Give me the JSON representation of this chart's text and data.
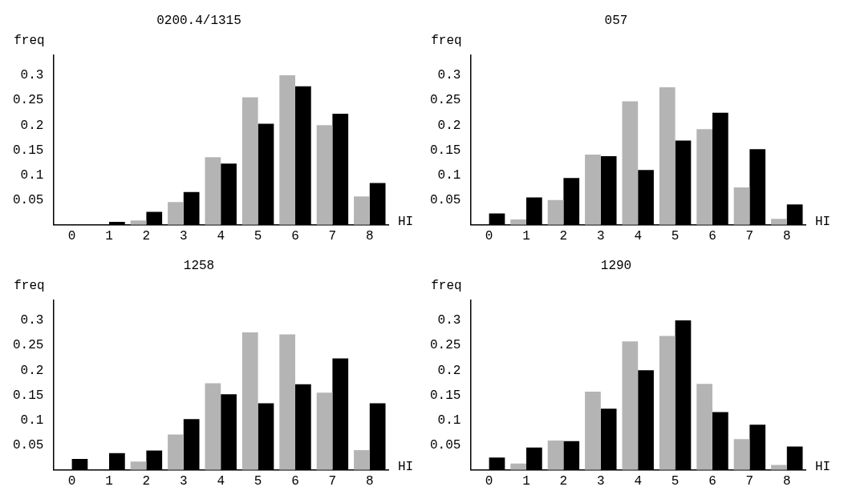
{
  "chart_data": [
    {
      "type": "bar",
      "title": "0200.4/1315",
      "xlabel": "HI",
      "ylabel": "freq",
      "categories": [
        "0",
        "1",
        "2",
        "3",
        "4",
        "5",
        "6",
        "7",
        "8"
      ],
      "ylim": [
        0,
        0.34
      ],
      "yticks": [
        0.05,
        0.1,
        0.15,
        0.2,
        0.25,
        0.3
      ],
      "grid": false,
      "legend": false,
      "series": [
        {
          "color": "#b4b4b4",
          "values": [
            0,
            0,
            0.009,
            0.046,
            0.136,
            0.256,
            0.3,
            0.2,
            0.057
          ]
        },
        {
          "color": "#000000",
          "values": [
            0.001,
            0.006,
            0.026,
            0.066,
            0.123,
            0.203,
            0.278,
            0.223,
            0.084
          ]
        }
      ]
    },
    {
      "type": "bar",
      "title": "057",
      "xlabel": "HI",
      "ylabel": "freq",
      "categories": [
        "0",
        "1",
        "2",
        "3",
        "4",
        "5",
        "6",
        "7",
        "8"
      ],
      "ylim": [
        0,
        0.34
      ],
      "yticks": [
        0.05,
        0.1,
        0.15,
        0.2,
        0.25,
        0.3
      ],
      "grid": false,
      "legend": false,
      "series": [
        {
          "color": "#b4b4b4",
          "values": [
            0,
            0.011,
            0.05,
            0.141,
            0.248,
            0.276,
            0.192,
            0.075,
            0.012
          ]
        },
        {
          "color": "#000000",
          "values": [
            0.023,
            0.055,
            0.094,
            0.138,
            0.11,
            0.169,
            0.225,
            0.152,
            0.041
          ]
        }
      ]
    },
    {
      "type": "bar",
      "title": "1258",
      "xlabel": "HI",
      "ylabel": "freq",
      "categories": [
        "0",
        "1",
        "2",
        "3",
        "4",
        "5",
        "6",
        "7",
        "8"
      ],
      "ylim": [
        0,
        0.34
      ],
      "yticks": [
        0.05,
        0.1,
        0.15,
        0.2,
        0.25,
        0.3
      ],
      "grid": false,
      "legend": false,
      "series": [
        {
          "color": "#b4b4b4",
          "values": [
            0,
            0,
            0.017,
            0.071,
            0.174,
            0.276,
            0.272,
            0.155,
            0.04
          ]
        },
        {
          "color": "#000000",
          "values": [
            0.022,
            0.034,
            0.039,
            0.102,
            0.152,
            0.134,
            0.172,
            0.224,
            0.134
          ]
        }
      ]
    },
    {
      "type": "bar",
      "title": "1290",
      "xlabel": "HI",
      "ylabel": "freq",
      "categories": [
        "0",
        "1",
        "2",
        "3",
        "4",
        "5",
        "6",
        "7",
        "8"
      ],
      "ylim": [
        0,
        0.34
      ],
      "yticks": [
        0.05,
        0.1,
        0.15,
        0.2,
        0.25,
        0.3
      ],
      "grid": false,
      "legend": false,
      "series": [
        {
          "color": "#b4b4b4",
          "values": [
            0,
            0.013,
            0.059,
            0.157,
            0.258,
            0.269,
            0.173,
            0.062,
            0.01
          ]
        },
        {
          "color": "#000000",
          "values": [
            0.025,
            0.045,
            0.058,
            0.123,
            0.2,
            0.3,
            0.116,
            0.091,
            0.047
          ]
        }
      ]
    }
  ]
}
